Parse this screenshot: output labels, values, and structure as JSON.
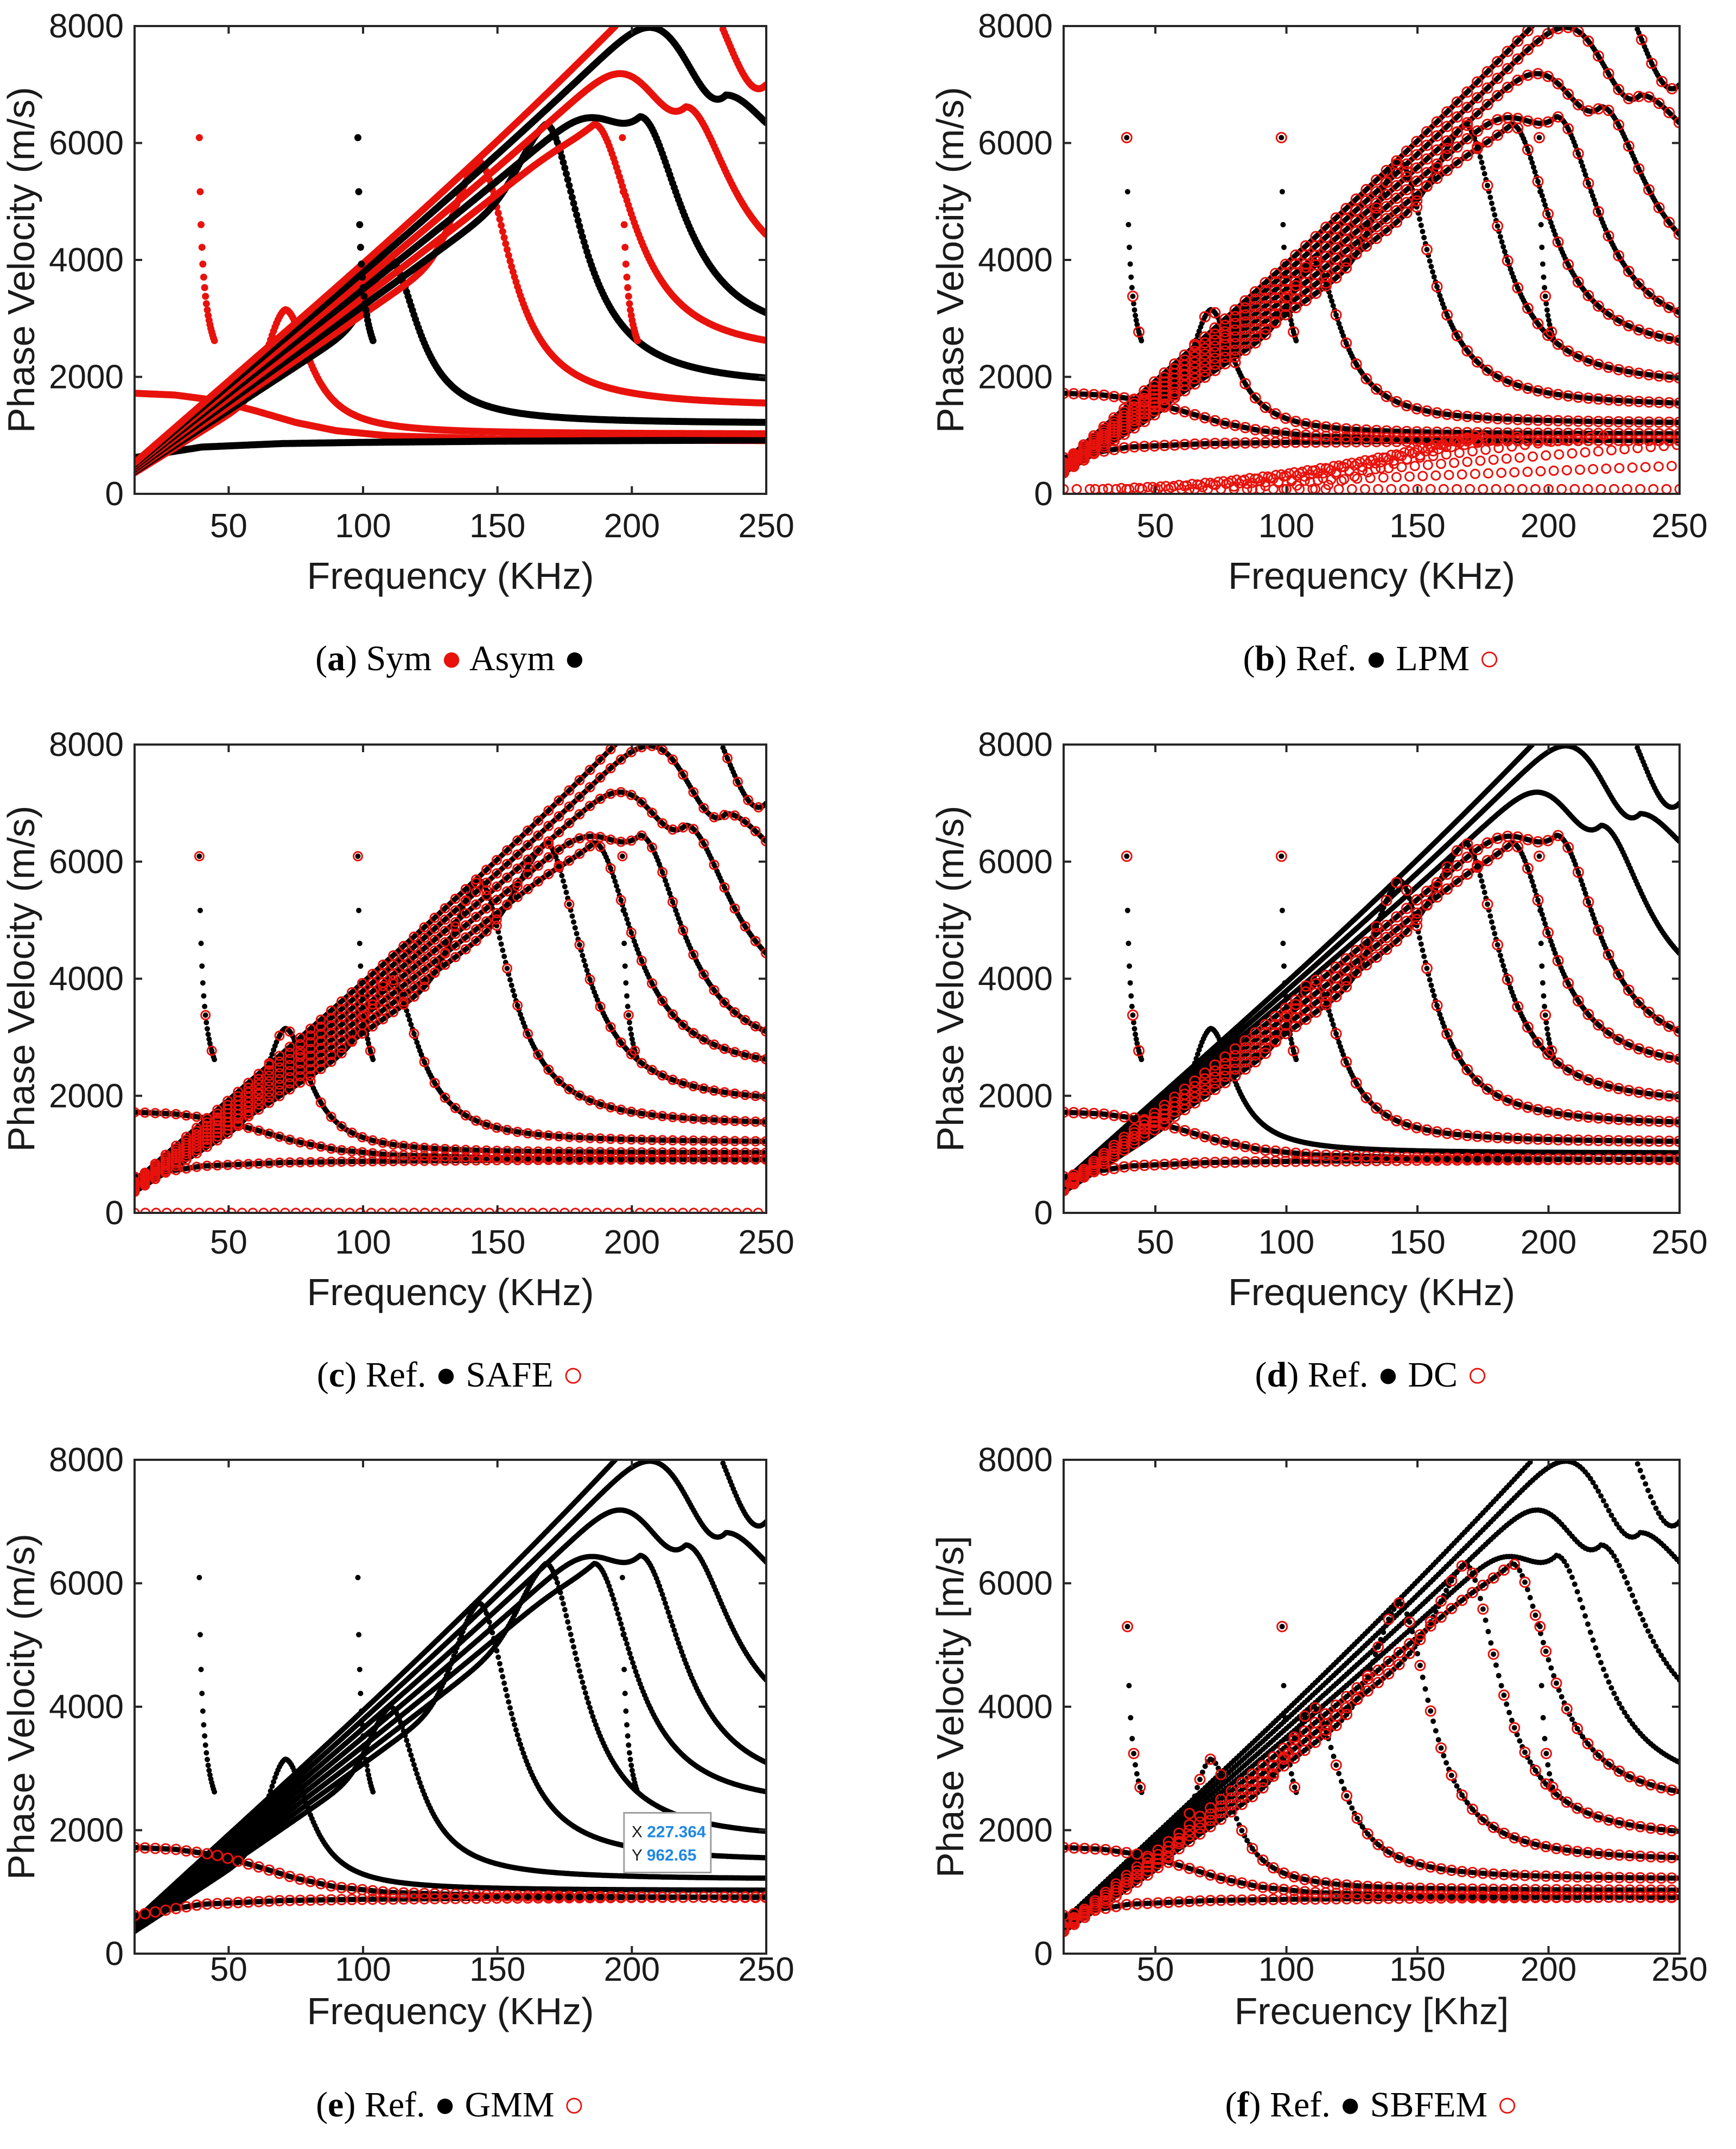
{
  "figure": {
    "panels": [
      {
        "id": "a",
        "caption": {
          "label": "a",
          "text_before": "Sym",
          "marker_red": "●",
          "text_mid": "Asym",
          "marker_black": "●"
        },
        "xlabel": "Frequency (KHz)",
        "ylabel": "Phase Velocity (m/s)",
        "xticks": [
          "50",
          "100",
          "150",
          "200",
          "250"
        ],
        "yticks": [
          "0",
          "2000",
          "4000",
          "6000",
          "8000"
        ],
        "style": "a"
      },
      {
        "id": "b",
        "caption": {
          "label": "b",
          "text_before": "Ref.",
          "marker_black": "●",
          "text_mid": "LPM",
          "marker_red": "○"
        },
        "xlabel": "Frequency (KHz)",
        "ylabel": "Phase Velocity (m/s)",
        "xticks": [
          "50",
          "100",
          "150",
          "200",
          "250"
        ],
        "yticks": [
          "0",
          "2000",
          "4000",
          "6000",
          "8000"
        ],
        "style": "lpm"
      },
      {
        "id": "c",
        "caption": {
          "label": "c",
          "text_before": "Ref.",
          "marker_black": "●",
          "text_mid": "SAFE",
          "marker_red": "○"
        },
        "xlabel": "Frequency (KHz)",
        "ylabel": "Phase Velocity (m/s)",
        "xticks": [
          "50",
          "100",
          "150",
          "200",
          "250"
        ],
        "yticks": [
          "0",
          "2000",
          "4000",
          "6000",
          "8000"
        ],
        "style": "safe"
      },
      {
        "id": "d",
        "caption": {
          "label": "d",
          "text_before": "Ref.",
          "marker_black": "●",
          "text_mid": "DC",
          "marker_red": "○"
        },
        "xlabel": "Frequency (KHz)",
        "ylabel": "Phase Velocity (m/s)",
        "xticks": [
          "50",
          "100",
          "150",
          "200",
          "250"
        ],
        "yticks": [
          "0",
          "2000",
          "4000",
          "6000",
          "8000"
        ],
        "style": "dc"
      },
      {
        "id": "e",
        "caption": {
          "label": "e",
          "text_before": "Ref.",
          "marker_black": "●",
          "text_mid": "GMM",
          "marker_red": "○"
        },
        "xlabel": "Frequency (KHz)",
        "ylabel": "Phase Velocity (m/s)",
        "xticks": [
          "50",
          "100",
          "150",
          "200",
          "250"
        ],
        "yticks": [
          "0",
          "2000",
          "4000",
          "6000",
          "8000"
        ],
        "style": "gmm",
        "datatip": {
          "x_label": "X",
          "x_value": "227.364",
          "y_label": "Y",
          "y_value": "962.65"
        }
      },
      {
        "id": "f",
        "caption": {
          "label": "f",
          "text_before": "Ref.",
          "marker_black": "●",
          "text_mid": "SBFEM",
          "marker_red": "○"
        },
        "xlabel": "Frecuency [Khz]",
        "ylabel": "Phase Velocity [m/s]",
        "xticks": [
          "50",
          "100",
          "150",
          "200",
          "250"
        ],
        "yticks": [
          "0",
          "2000",
          "4000",
          "6000",
          "8000"
        ],
        "style": "sbfem"
      }
    ]
  },
  "colors": {
    "reference": "#000000",
    "method": "#e8120c",
    "datatip_text": "#1e88e5"
  },
  "chart_data": {
    "type": "scatter",
    "description_of_series": "Dispersion curves: phase velocity vs frequency for guided wave modes",
    "xlim": [
      15,
      250
    ],
    "ylim": [
      0,
      8000
    ],
    "fundamental_modes": [
      {
        "name": "low mode (starts ~1720)",
        "x": [
          15,
          30,
          45,
          60,
          75,
          90,
          110,
          150,
          200,
          250
        ],
        "y": [
          1720,
          1690,
          1600,
          1420,
          1220,
          1080,
          990,
          940,
          920,
          910
        ]
      },
      {
        "name": "low flat mode",
        "x": [
          15,
          40,
          70,
          100,
          150,
          200,
          250
        ],
        "y": [
          620,
          800,
          860,
          880,
          900,
          910,
          920
        ]
      }
    ],
    "peaked_modes": [
      {
        "peak_freq": 71,
        "peak_vel": 3150,
        "cutoff_freq": 38.6
      },
      {
        "peak_freq": 110,
        "peak_vel": 4000,
        "cutoff_freq": 97.6
      },
      {
        "peak_freq": 143,
        "peak_vel": 5680,
        "cutoff_freq": 97.6
      },
      {
        "peak_freq": 168,
        "peak_vel": 6320,
        "cutoff_freq": 97.6
      },
      {
        "peak_freq": 186,
        "peak_vel": 6320,
        "cutoff_freq": 196
      },
      {
        "peak_freq": 203,
        "peak_vel": 6450,
        "cutoff_freq": 196
      },
      {
        "peak_freq": 220,
        "peak_vel": 6620,
        "cutoff_freq": 196
      },
      {
        "peak_freq": 235,
        "peak_vel": 6820,
        "cutoff_freq": 196
      },
      {
        "peak_freq": 250,
        "peak_vel": 7000,
        "cutoff_freq": 196
      }
    ],
    "asymptote_velocities": [
      1020,
      1200,
      1480,
      1820,
      2350,
      2550,
      3400,
      5300,
      5800
    ]
  }
}
